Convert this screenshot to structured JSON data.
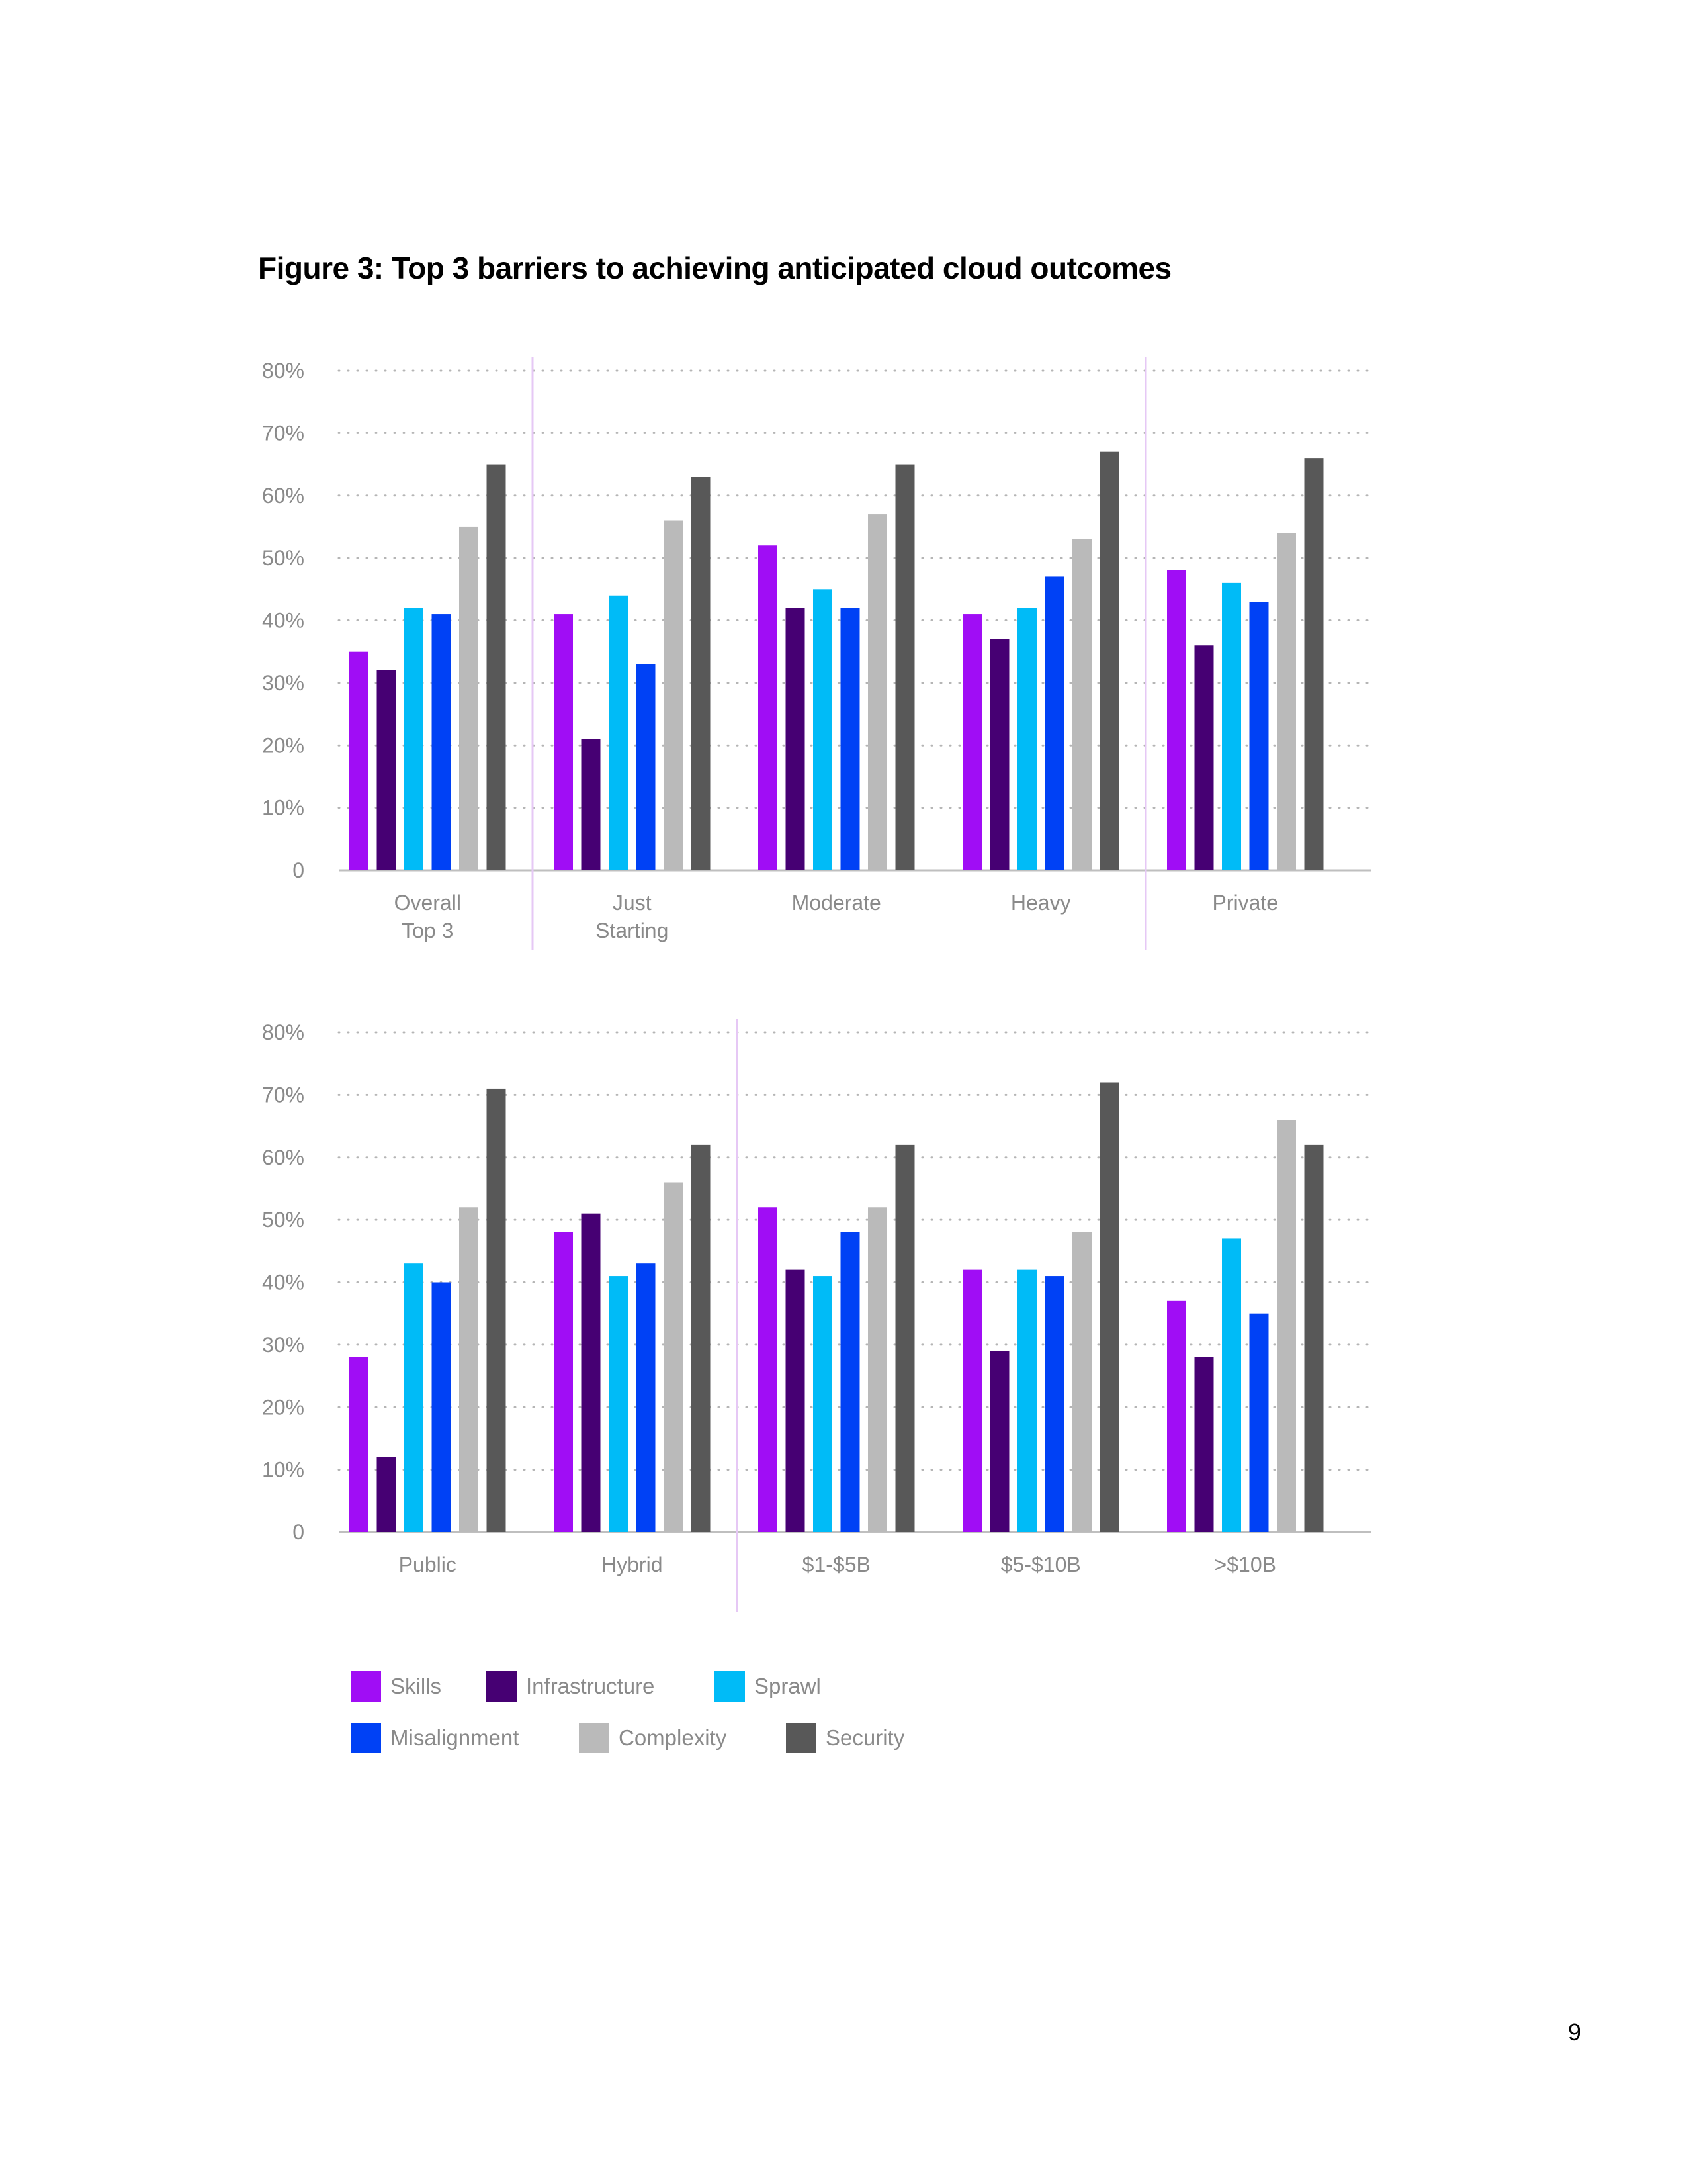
{
  "page": {
    "title": "Figure 3: Top 3 barriers to achieving anticipated cloud outcomes",
    "page_number": "9"
  },
  "colors": {
    "Skills": "#a00df5",
    "Infrastructure": "#460073",
    "Sprawl": "#00bbf7",
    "Misalignment": "#0041f5",
    "Complexity": "#bababa",
    "Security": "#585858",
    "grid": "#b5b5b5",
    "divider": "#e6c8f5",
    "axis": "#bfbfbf"
  },
  "legend": [
    {
      "name": "Skills",
      "label": "Skills"
    },
    {
      "name": "Infrastructure",
      "label": "Infrastructure"
    },
    {
      "name": "Sprawl",
      "label": "Sprawl"
    },
    {
      "name": "Misalignment",
      "label": "Misalignment"
    },
    {
      "name": "Complexity",
      "label": "Complexity"
    },
    {
      "name": "Security",
      "label": "Security"
    }
  ],
  "chart_data": [
    {
      "type": "bar",
      "title": "Figure 3: Top 3 barriers to achieving anticipated cloud outcomes",
      "ylim": [
        0,
        80
      ],
      "y_ticks": [
        "0",
        "10%",
        "20%",
        "30%",
        "40%",
        "50%",
        "60%",
        "70%",
        "80%"
      ],
      "categories": [
        [
          "Overall",
          "Top 3"
        ],
        [
          "Just",
          "Starting"
        ],
        [
          "Moderate"
        ],
        [
          "Heavy"
        ],
        [
          "Private"
        ]
      ],
      "dividers_after": [
        0,
        3
      ],
      "series": [
        {
          "name": "Skills",
          "values": [
            35,
            41,
            52,
            41,
            48
          ]
        },
        {
          "name": "Infrastructure",
          "values": [
            32,
            21,
            42,
            37,
            36
          ]
        },
        {
          "name": "Sprawl",
          "values": [
            42,
            44,
            45,
            42,
            46
          ]
        },
        {
          "name": "Misalignment",
          "values": [
            41,
            33,
            42,
            47,
            43
          ]
        },
        {
          "name": "Complexity",
          "values": [
            55,
            56,
            57,
            53,
            54
          ]
        },
        {
          "name": "Security",
          "values": [
            65,
            63,
            65,
            67,
            66
          ]
        }
      ]
    },
    {
      "type": "bar",
      "ylim": [
        0,
        80
      ],
      "y_ticks": [
        "0",
        "10%",
        "20%",
        "30%",
        "40%",
        "50%",
        "60%",
        "70%",
        "80%"
      ],
      "categories": [
        [
          "Public"
        ],
        [
          "Hybrid"
        ],
        [
          "$1-$5B"
        ],
        [
          "$5-$10B"
        ],
        [
          ">$10B"
        ]
      ],
      "dividers_after": [
        1
      ],
      "series": [
        {
          "name": "Skills",
          "values": [
            28,
            48,
            52,
            42,
            37
          ]
        },
        {
          "name": "Infrastructure",
          "values": [
            12,
            51,
            42,
            29,
            28
          ]
        },
        {
          "name": "Sprawl",
          "values": [
            43,
            41,
            41,
            42,
            47
          ]
        },
        {
          "name": "Misalignment",
          "values": [
            40,
            43,
            48,
            41,
            35
          ]
        },
        {
          "name": "Complexity",
          "values": [
            52,
            56,
            52,
            48,
            66
          ]
        },
        {
          "name": "Security",
          "values": [
            71,
            62,
            62,
            72,
            62
          ]
        }
      ]
    }
  ]
}
